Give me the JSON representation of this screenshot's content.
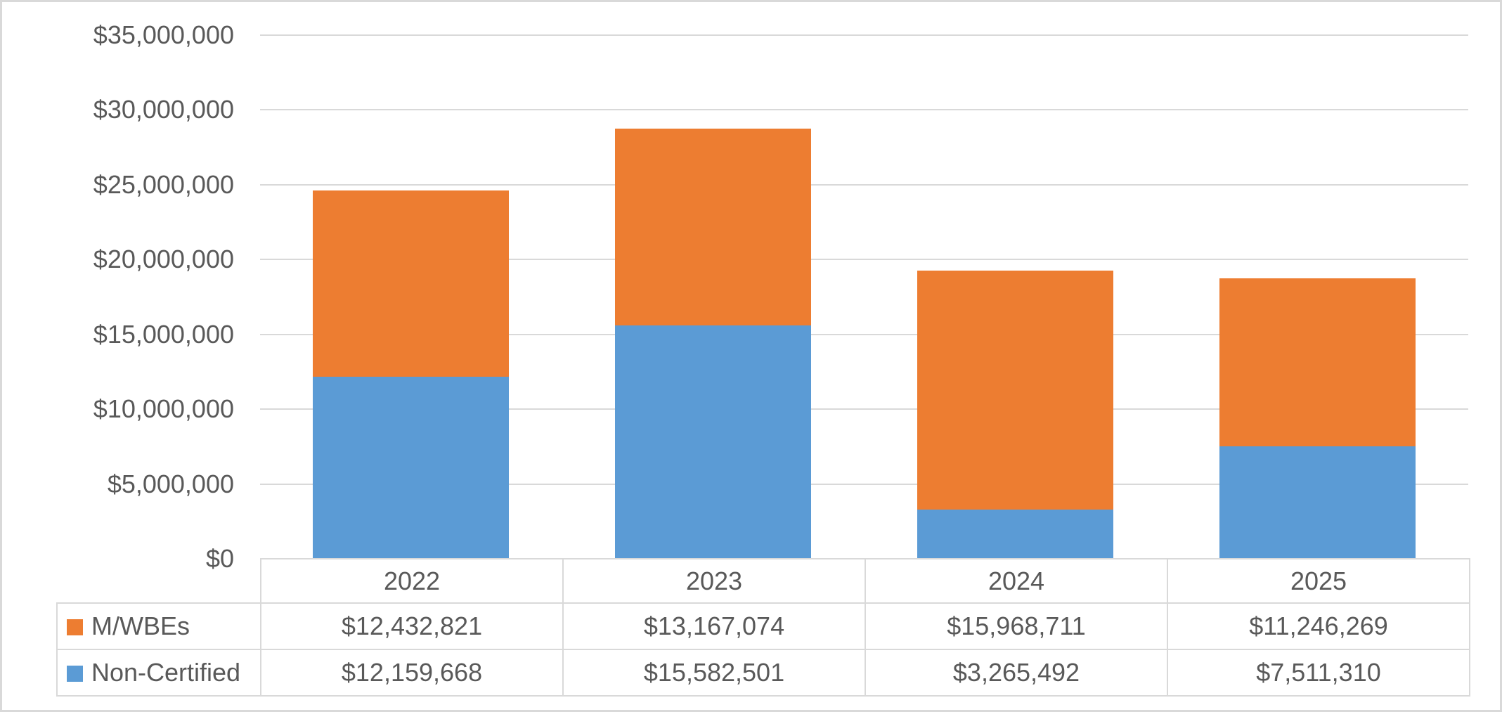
{
  "chart_data": {
    "type": "bar",
    "stacked": true,
    "title": "",
    "xlabel": "",
    "ylabel": "",
    "categories": [
      "2022",
      "2023",
      "2024",
      "2025"
    ],
    "series": [
      {
        "name": "M/WBEs",
        "color": "#ED7D31",
        "values": [
          12432821,
          13167074,
          15968711,
          11246269
        ],
        "labels": [
          "$12,432,821",
          "$13,167,074",
          "$15,968,711",
          "$11,246,269"
        ]
      },
      {
        "name": "Non-Certified",
        "color": "#5B9BD5",
        "values": [
          12159668,
          15582501,
          3265492,
          7511310
        ],
        "labels": [
          "$12,159,668",
          "$15,582,501",
          "$3,265,492",
          "$7,511,310"
        ]
      }
    ],
    "stack_order_bottom_to_top": [
      "Non-Certified",
      "M/WBEs"
    ],
    "ylim": [
      0,
      35000000
    ],
    "ytick_step": 5000000,
    "ytick_labels": [
      "$0",
      "$5,000,000",
      "$10,000,000",
      "$15,000,000",
      "$20,000,000",
      "$25,000,000",
      "$30,000,000",
      "$35,000,000"
    ],
    "grid": true,
    "legend_position": "left-of-data-table-rows"
  },
  "colors": {
    "mwbes": "#ED7D31",
    "non_certified": "#5B9BD5",
    "gridline": "#D9D9D9",
    "table_border": "#D9D9D9",
    "text": "#595959",
    "background": "#FFFFFF"
  }
}
